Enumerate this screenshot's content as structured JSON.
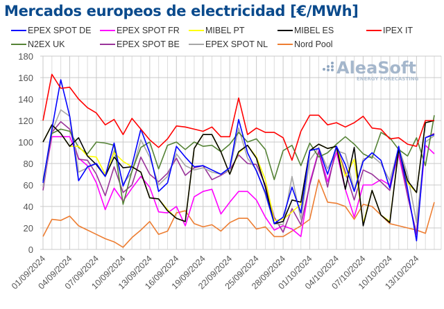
{
  "chart_data": {
    "type": "line",
    "title": "Mercados europeos de electricidad [€/MWh]",
    "xlabel": "",
    "ylabel": "",
    "ylim": [
      0,
      180
    ],
    "yticks": [
      0,
      20,
      40,
      60,
      80,
      100,
      120,
      140,
      160,
      180
    ],
    "grid": true,
    "legend_position": "top",
    "watermark": {
      "brand": "AleaSoft",
      "tagline": "ENERGY FORECASTING"
    },
    "x": [
      "01/09/2024",
      "02/09/2024",
      "03/09/2024",
      "04/09/2024",
      "05/09/2024",
      "06/09/2024",
      "07/09/2024",
      "08/09/2024",
      "09/09/2024",
      "10/09/2024",
      "11/09/2024",
      "12/09/2024",
      "13/09/2024",
      "14/09/2024",
      "15/09/2024",
      "16/09/2024",
      "17/09/2024",
      "18/09/2024",
      "19/09/2024",
      "20/09/2024",
      "21/09/2024",
      "22/09/2024",
      "23/09/2024",
      "24/09/2024",
      "25/09/2024",
      "26/09/2024",
      "27/09/2024",
      "28/09/2024",
      "29/09/2024",
      "30/09/2024",
      "01/10/2024",
      "02/10/2024",
      "03/10/2024",
      "04/10/2024",
      "05/10/2024",
      "06/10/2024",
      "07/10/2024",
      "08/10/2024",
      "09/10/2024",
      "10/10/2024",
      "11/10/2024",
      "12/10/2024",
      "13/10/2024",
      "14/10/2024",
      "15/10/2024"
    ],
    "xtick_labels": [
      "01/09/2024",
      "04/09/2024",
      "07/09/2024",
      "10/09/2024",
      "13/09/2024",
      "16/09/2024",
      "19/09/2024",
      "22/09/2024",
      "25/09/2024",
      "28/09/2024",
      "01/10/2024",
      "04/10/2024",
      "07/10/2024",
      "10/10/2024",
      "13/10/2024"
    ],
    "series": [
      {
        "name": "EPEX SPOT DE",
        "color": "#0000ff",
        "values": [
          62,
          112,
          158,
          124,
          64,
          77,
          80,
          68,
          99,
          59,
          78,
          112,
          90,
          54,
          62,
          96,
          86,
          77,
          78,
          74,
          70,
          76,
          121,
          90,
          73,
          53,
          24,
          30,
          58,
          34,
          92,
          94,
          70,
          96,
          79,
          54,
          82,
          90,
          83,
          57,
          96,
          56,
          8,
          104,
          107
        ]
      },
      {
        "name": "EPEX SPOT FR",
        "color": "#ff00ff",
        "values": [
          58,
          105,
          105,
          105,
          85,
          78,
          62,
          37,
          57,
          45,
          57,
          68,
          58,
          35,
          34,
          40,
          22,
          49,
          54,
          56,
          33,
          44,
          54,
          54,
          46,
          30,
          18,
          22,
          19,
          12,
          62,
          92,
          63,
          91,
          56,
          30,
          60,
          60,
          65,
          60,
          88,
          50,
          14,
          97,
          89
        ]
      },
      {
        "name": "MIBEL PT",
        "color": "#ffff00",
        "values": [
          100,
          116,
          108,
          96,
          96,
          87,
          86,
          70,
          90,
          82,
          77,
          72,
          48,
          47,
          37,
          29,
          26,
          94,
          107,
          107,
          91,
          70,
          90,
          97,
          86,
          65,
          27,
          28,
          35,
          42,
          92,
          98,
          94,
          96,
          68,
          84,
          24,
          55,
          32,
          26,
          93,
          62,
          53,
          118,
          120
        ]
      },
      {
        "name": "MIBEL ES",
        "color": "#000000",
        "values": [
          100,
          116,
          108,
          96,
          104,
          87,
          79,
          68,
          86,
          76,
          77,
          72,
          48,
          47,
          36,
          29,
          26,
          94,
          107,
          107,
          91,
          70,
          91,
          97,
          85,
          58,
          24,
          26,
          46,
          44,
          92,
          98,
          94,
          96,
          56,
          95,
          22,
          55,
          32,
          25,
          93,
          64,
          53,
          118,
          120
        ]
      },
      {
        "name": "IPEX IT",
        "color": "#ff0000",
        "values": [
          120,
          163,
          150,
          151,
          140,
          132,
          127,
          116,
          121,
          107,
          122,
          112,
          102,
          95,
          103,
          115,
          114,
          112,
          110,
          114,
          105,
          105,
          141,
          107,
          113,
          109,
          109,
          104,
          83,
          110,
          125,
          125,
          116,
          118,
          114,
          118,
          124,
          113,
          112,
          103,
          104,
          98,
          96,
          120,
          120
        ]
      },
      {
        "name": "N2EX UK",
        "color": "#548235",
        "values": [
          64,
          108,
          112,
          110,
          95,
          89,
          100,
          99,
          97,
          42,
          73,
          95,
          100,
          75,
          97,
          100,
          93,
          100,
          96,
          97,
          91,
          98,
          109,
          100,
          103,
          93,
          65,
          92,
          97,
          78,
          99,
          86,
          90,
          98,
          105,
          98,
          89,
          85,
          109,
          104,
          93,
          87,
          104,
          78,
          125
        ]
      },
      {
        "name": "EPEX SPOT BE",
        "color": "#993399",
        "values": [
          55,
          109,
          119,
          112,
          84,
          83,
          70,
          50,
          77,
          53,
          60,
          86,
          70,
          63,
          71,
          85,
          69,
          76,
          78,
          65,
          69,
          74,
          88,
          80,
          79,
          60,
          30,
          16,
          38,
          23,
          60,
          91,
          58,
          96,
          72,
          46,
          74,
          70,
          63,
          55,
          93,
          50,
          15,
          104,
          108
        ]
      },
      {
        "name": "EPEX SPOT NL",
        "color": "#a6a6a6",
        "values": [
          58,
          110,
          130,
          124,
          72,
          76,
          80,
          68,
          92,
          61,
          72,
          102,
          86,
          60,
          68,
          89,
          78,
          74,
          76,
          72,
          70,
          74,
          113,
          85,
          74,
          51,
          24,
          23,
          68,
          28,
          83,
          95,
          75,
          92,
          89,
          55,
          84,
          87,
          80,
          64,
          95,
          70,
          25,
          100,
          106
        ]
      },
      {
        "name": "Nord Pool",
        "color": "#ed7d31",
        "values": [
          12,
          28,
          27,
          31,
          22,
          18,
          14,
          10,
          7,
          2,
          11,
          18,
          26,
          14,
          17,
          34,
          36,
          24,
          21,
          23,
          17,
          25,
          29,
          29,
          19,
          21,
          12,
          12,
          17,
          22,
          28,
          65,
          44,
          43,
          40,
          28,
          42,
          40,
          32,
          24,
          22,
          20,
          18,
          15,
          44
        ]
      }
    ]
  }
}
